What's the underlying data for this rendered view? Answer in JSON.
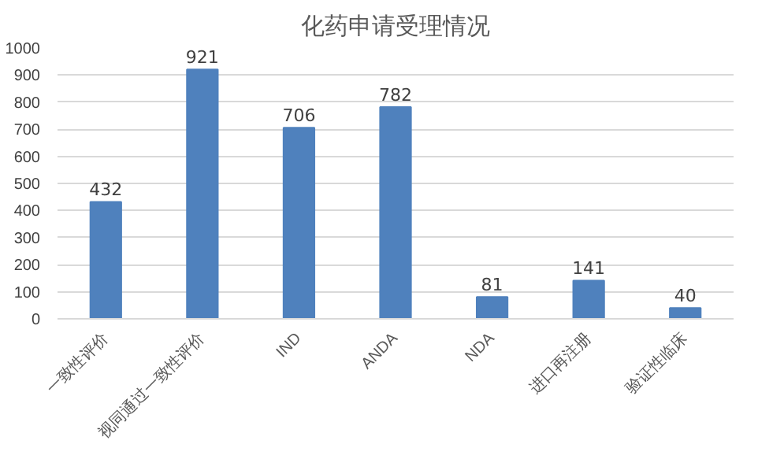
{
  "chart_data": {
    "type": "bar",
    "title": "化药申请受理情况",
    "categories": [
      "一致性评价",
      "视同通过一致性评价",
      "IND",
      "ANDA",
      "NDA",
      "进口再注册",
      "验证性临床"
    ],
    "values": [
      432,
      921,
      706,
      782,
      81,
      141,
      40
    ],
    "color": "#4f81bd",
    "ylim": [
      0,
      1000
    ],
    "yticks": [
      0,
      100,
      200,
      300,
      400,
      500,
      600,
      700,
      800,
      900,
      1000
    ],
    "grid": "y",
    "data_labels": true
  }
}
